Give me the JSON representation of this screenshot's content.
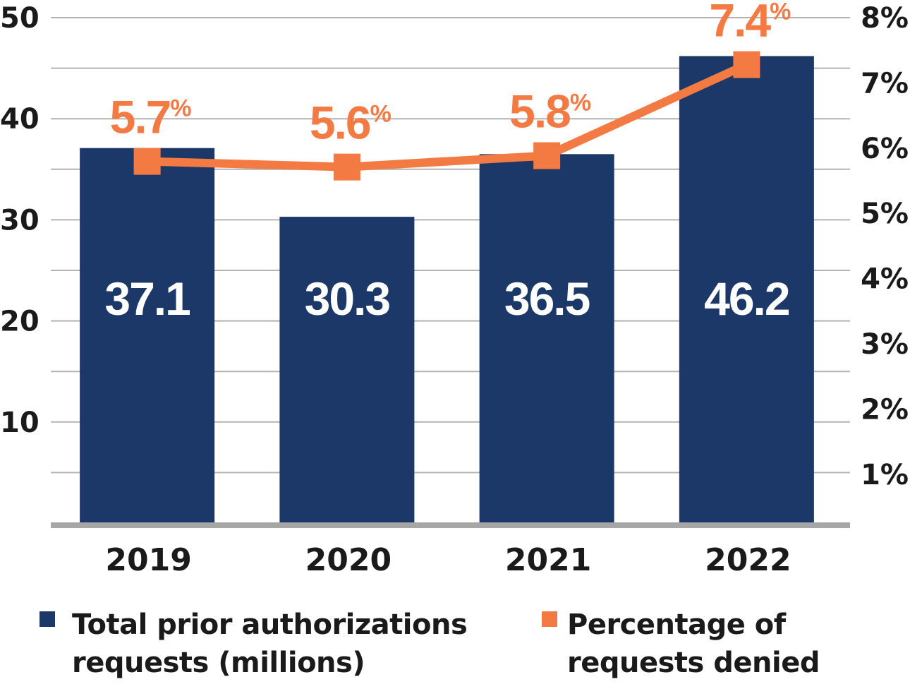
{
  "chart_data": {
    "type": "bar",
    "title": "",
    "categories": [
      "2019",
      "2020",
      "2021",
      "2022"
    ],
    "series": [
      {
        "name": "Total prior authorizations requests (millions)",
        "type": "bar",
        "axis": "left",
        "color": "#1b3868",
        "values": [
          37.1,
          30.3,
          36.5,
          46.2
        ],
        "labels": [
          "37.1",
          "30.3",
          "36.5",
          "46.2"
        ]
      },
      {
        "name": "Percentage of requests denied",
        "type": "line",
        "axis": "right",
        "color": "#f47a43",
        "values": [
          5.7,
          5.6,
          5.8,
          7.4
        ],
        "labels": [
          "5.7",
          "5.6",
          "5.8",
          "7.4"
        ],
        "label_suffix": "%"
      }
    ],
    "left_axis": {
      "label": "",
      "ylim": [
        0,
        50
      ],
      "ticks": [
        10,
        20,
        30,
        40,
        50
      ],
      "tick_labels": [
        "10",
        "20",
        "30",
        "40",
        "50"
      ]
    },
    "right_axis": {
      "label": "",
      "ylim": [
        0,
        8
      ],
      "ticks": [
        1,
        2,
        3,
        4,
        5,
        6,
        7,
        8
      ],
      "tick_labels": [
        "1%",
        "2%",
        "3%",
        "4%",
        "5%",
        "6%",
        "7%",
        "8%"
      ]
    },
    "xlabel": "",
    "grid": true,
    "legend": {
      "placement": "bottom",
      "entries": [
        {
          "line1": "Total prior authorizations",
          "line2": "requests (millions)",
          "color": "#1b3868"
        },
        {
          "line1": "Percentage of",
          "line2": "requests denied",
          "color": "#f47a43"
        }
      ]
    }
  }
}
